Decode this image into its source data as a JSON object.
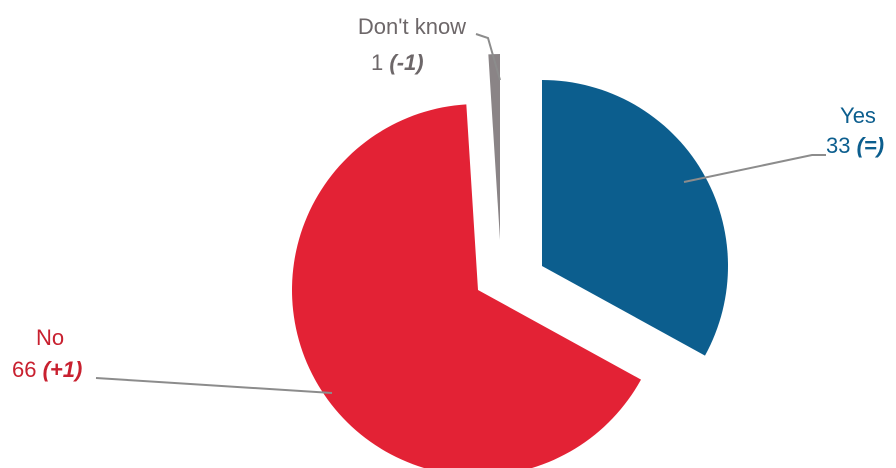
{
  "chart_data": {
    "type": "pie",
    "title": "",
    "slices": [
      {
        "label": "Yes",
        "value": 33,
        "change": "(=)",
        "color": "#0c5e8e",
        "label_color": "#0c5e8e"
      },
      {
        "label": "No",
        "value": 66,
        "change": "(+1)",
        "color": "#e32235",
        "label_color": "#c8202f"
      },
      {
        "label": "Don't know",
        "value": 1,
        "change": "(-1)",
        "color": "#8a8486",
        "label_color": "#6d6769"
      }
    ],
    "exploded": true,
    "legend": "none"
  }
}
